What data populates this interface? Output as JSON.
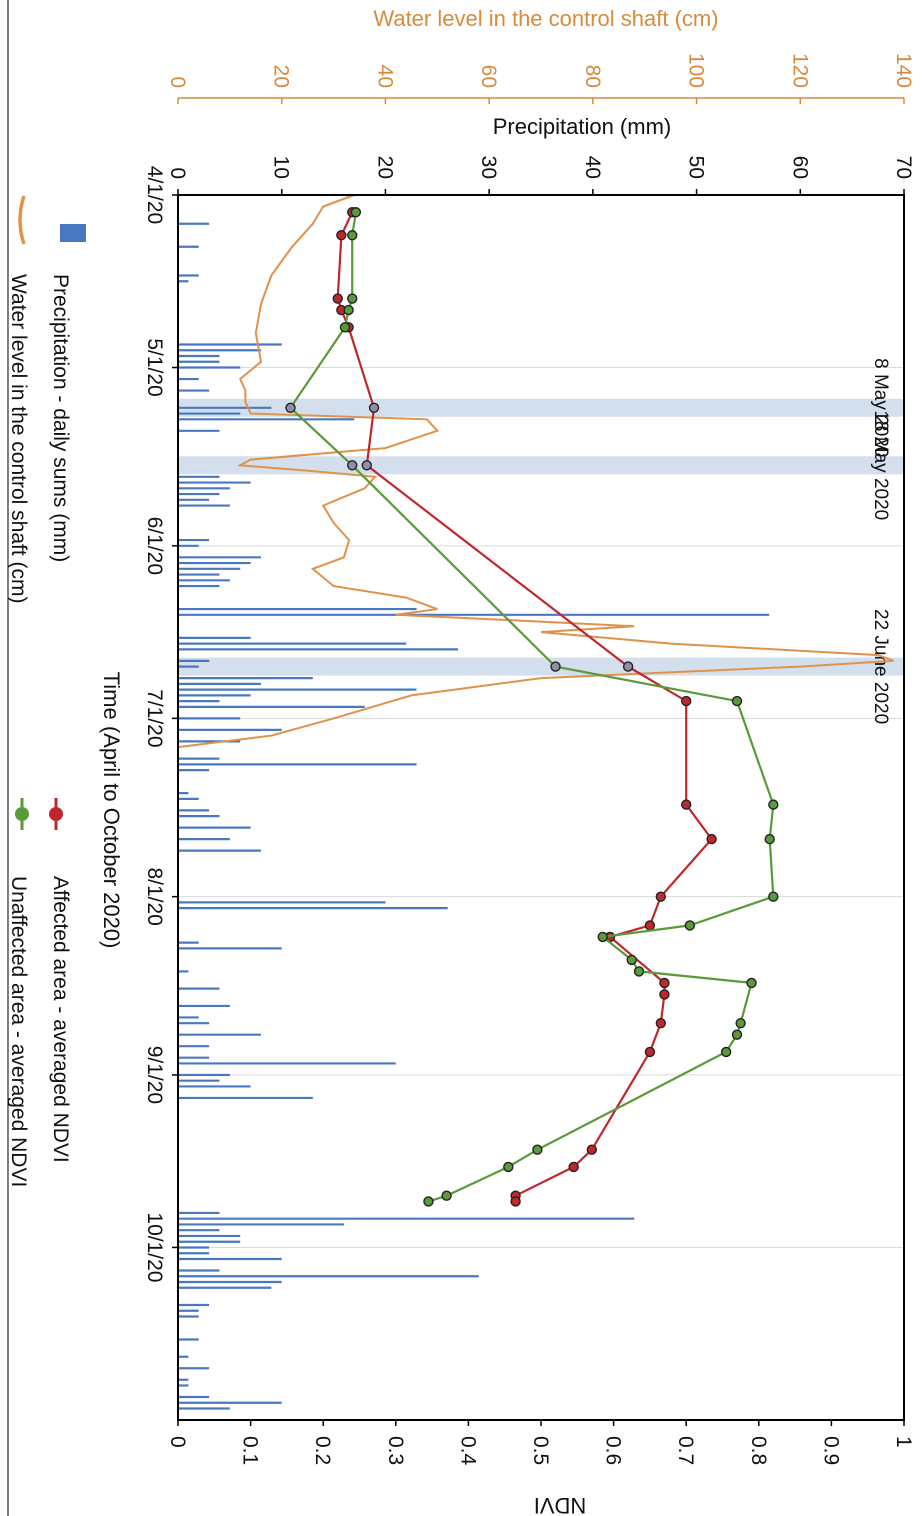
{
  "chart_data": {
    "type": "line",
    "title": "",
    "xlabel": "Time (April to October 2020)",
    "x_ticks": [
      "4/1/20",
      "5/1/20",
      "6/1/20",
      "7/1/20",
      "8/1/20",
      "9/1/20",
      "10/1/20"
    ],
    "x_range": [
      "2020-04-01",
      "2020-10-31"
    ],
    "ndvi_axis": {
      "label": "NDVI",
      "range": [
        0,
        1
      ],
      "ticks": [
        "0",
        "0.1",
        "0.2",
        "0.3",
        "0.4",
        "0.5",
        "0.6",
        "0.7",
        "0.8",
        "0.9",
        "1"
      ]
    },
    "precip_axis": {
      "label": "Precipitation (mm)",
      "range": [
        0,
        70
      ],
      "ticks": [
        "0",
        "10",
        "20",
        "30",
        "40",
        "50",
        "60",
        "70"
      ]
    },
    "water_axis": {
      "label": "Water level in the control shaft (cm)",
      "range": [
        0,
        140
      ],
      "ticks": [
        "0",
        "20",
        "40",
        "60",
        "80",
        "100",
        "120",
        "140"
      ],
      "color": "#d98a3d"
    },
    "highlights": [
      {
        "date": "2020-05-08",
        "label": "8 May 2020"
      },
      {
        "date": "2020-05-18",
        "label": "18 May 2020"
      },
      {
        "date": "2020-06-22",
        "label": "22 June 2020"
      }
    ],
    "grid": true,
    "legend_position": "bottom",
    "legend": [
      {
        "label": "Precipitation - daily sums (mm)",
        "kind": "bar",
        "color": "#4a78c0"
      },
      {
        "label": "Water level in the control shaft (cm)",
        "kind": "line",
        "color": "#e0924b"
      },
      {
        "label": "Affected area - averaged NDVI",
        "kind": "marker-line",
        "color": "#c0272d"
      },
      {
        "label": "Unaffected area - averaged NDVI",
        "kind": "marker-line",
        "color": "#5a9a3a"
      }
    ],
    "series": [
      {
        "name": "Affected area - averaged NDVI",
        "color": "#c0272d",
        "points": [
          [
            "2020-04-04",
            0.24
          ],
          [
            "2020-04-08",
            0.225
          ],
          [
            "2020-04-19",
            0.22
          ],
          [
            "2020-04-21",
            0.225
          ],
          [
            "2020-04-24",
            0.235
          ],
          [
            "2020-05-08",
            0.27
          ],
          [
            "2020-05-18",
            0.26
          ],
          [
            "2020-06-22",
            0.62
          ],
          [
            "2020-06-28",
            0.7
          ],
          [
            "2020-07-16",
            0.7
          ],
          [
            "2020-07-22",
            0.735
          ],
          [
            "2020-08-01",
            0.665
          ],
          [
            "2020-08-06",
            0.65
          ],
          [
            "2020-08-08",
            0.595
          ],
          [
            "2020-08-16",
            0.67
          ],
          [
            "2020-08-18",
            0.67
          ],
          [
            "2020-08-23",
            0.665
          ],
          [
            "2020-08-28",
            0.65
          ],
          [
            "2020-09-14",
            0.57
          ],
          [
            "2020-09-17",
            0.545
          ],
          [
            "2020-09-22",
            0.465
          ],
          [
            "2020-09-23",
            0.465
          ]
        ]
      },
      {
        "name": "Unaffected area - averaged NDVI",
        "color": "#5a9a3a",
        "points": [
          [
            "2020-04-04",
            0.245
          ],
          [
            "2020-04-08",
            0.24
          ],
          [
            "2020-04-19",
            0.24
          ],
          [
            "2020-04-21",
            0.235
          ],
          [
            "2020-04-24",
            0.23
          ],
          [
            "2020-05-08",
            0.155
          ],
          [
            "2020-05-18",
            0.24
          ],
          [
            "2020-06-22",
            0.52
          ],
          [
            "2020-06-28",
            0.77
          ],
          [
            "2020-07-16",
            0.82
          ],
          [
            "2020-07-22",
            0.815
          ],
          [
            "2020-08-01",
            0.82
          ],
          [
            "2020-08-06",
            0.705
          ],
          [
            "2020-08-08",
            0.585
          ],
          [
            "2020-08-12",
            0.625
          ],
          [
            "2020-08-14",
            0.635
          ],
          [
            "2020-08-16",
            0.79
          ],
          [
            "2020-08-23",
            0.775
          ],
          [
            "2020-08-25",
            0.77
          ],
          [
            "2020-08-28",
            0.755
          ],
          [
            "2020-09-14",
            0.495
          ],
          [
            "2020-09-17",
            0.455
          ],
          [
            "2020-09-22",
            0.37
          ],
          [
            "2020-09-23",
            0.345
          ]
        ]
      },
      {
        "name": "Water level in the control shaft (cm)",
        "color": "#e0924b",
        "points": [
          [
            "2020-04-01",
            34
          ],
          [
            "2020-04-03",
            28
          ],
          [
            "2020-04-06",
            26
          ],
          [
            "2020-04-10",
            22
          ],
          [
            "2020-04-15",
            18
          ],
          [
            "2020-04-20",
            16
          ],
          [
            "2020-04-25",
            15
          ],
          [
            "2020-04-30",
            16
          ],
          [
            "2020-05-03",
            12
          ],
          [
            "2020-05-05",
            13
          ],
          [
            "2020-05-07",
            13
          ],
          [
            "2020-05-09",
            14
          ],
          [
            "2020-05-10",
            48
          ],
          [
            "2020-05-12",
            50
          ],
          [
            "2020-05-15",
            40
          ],
          [
            "2020-05-17",
            14
          ],
          [
            "2020-05-18",
            12
          ],
          [
            "2020-05-19",
            26
          ],
          [
            "2020-05-20",
            38
          ],
          [
            "2020-05-22",
            36
          ],
          [
            "2020-05-25",
            28
          ],
          [
            "2020-05-28",
            30
          ],
          [
            "2020-05-31",
            33
          ],
          [
            "2020-06-03",
            32
          ],
          [
            "2020-06-05",
            26
          ],
          [
            "2020-06-08",
            30
          ],
          [
            "2020-06-10",
            44
          ],
          [
            "2020-06-12",
            50
          ],
          [
            "2020-06-13",
            42
          ],
          [
            "2020-06-14",
            66
          ],
          [
            "2020-06-15",
            88
          ],
          [
            "2020-06-16",
            70
          ],
          [
            "2020-06-18",
            95
          ],
          [
            "2020-06-20",
            135
          ],
          [
            "2020-06-21",
            138
          ],
          [
            "2020-06-22",
            120
          ],
          [
            "2020-06-24",
            70
          ],
          [
            "2020-06-27",
            45
          ],
          [
            "2020-07-01",
            30
          ],
          [
            "2020-07-04",
            18
          ],
          [
            "2020-07-06",
            0
          ],
          [
            "2020-10-31",
            0
          ]
        ]
      },
      {
        "name": "Precipitation - daily sums (mm)",
        "color": "#4a78c0",
        "points": [
          [
            "2020-04-06",
            3
          ],
          [
            "2020-04-10",
            2
          ],
          [
            "2020-04-15",
            2
          ],
          [
            "2020-04-16",
            1
          ],
          [
            "2020-04-27",
            10
          ],
          [
            "2020-04-28",
            8
          ],
          [
            "2020-04-29",
            4
          ],
          [
            "2020-04-30",
            4
          ],
          [
            "2020-05-01",
            6
          ],
          [
            "2020-05-03",
            2
          ],
          [
            "2020-05-05",
            3
          ],
          [
            "2020-05-08",
            9
          ],
          [
            "2020-05-09",
            6
          ],
          [
            "2020-05-10",
            17
          ],
          [
            "2020-05-12",
            4
          ],
          [
            "2020-05-20",
            4
          ],
          [
            "2020-05-21",
            7
          ],
          [
            "2020-05-22",
            5
          ],
          [
            "2020-05-23",
            4
          ],
          [
            "2020-05-24",
            3
          ],
          [
            "2020-05-25",
            5
          ],
          [
            "2020-05-31",
            3
          ],
          [
            "2020-06-01",
            2
          ],
          [
            "2020-06-03",
            8
          ],
          [
            "2020-06-04",
            7
          ],
          [
            "2020-06-05",
            6
          ],
          [
            "2020-06-06",
            4
          ],
          [
            "2020-06-07",
            5
          ],
          [
            "2020-06-08",
            4
          ],
          [
            "2020-06-12",
            23
          ],
          [
            "2020-06-13",
            57
          ],
          [
            "2020-06-17",
            7
          ],
          [
            "2020-06-18",
            22
          ],
          [
            "2020-06-19",
            27
          ],
          [
            "2020-06-21",
            3
          ],
          [
            "2020-06-22",
            2
          ],
          [
            "2020-06-24",
            13
          ],
          [
            "2020-06-25",
            8
          ],
          [
            "2020-06-26",
            23
          ],
          [
            "2020-06-27",
            7
          ],
          [
            "2020-06-28",
            4
          ],
          [
            "2020-06-29",
            18
          ],
          [
            "2020-07-01",
            6
          ],
          [
            "2020-07-03",
            10
          ],
          [
            "2020-07-05",
            6
          ],
          [
            "2020-07-08",
            4
          ],
          [
            "2020-07-09",
            23
          ],
          [
            "2020-07-10",
            3
          ],
          [
            "2020-07-14",
            1
          ],
          [
            "2020-07-15",
            2
          ],
          [
            "2020-07-17",
            3
          ],
          [
            "2020-07-18",
            4
          ],
          [
            "2020-07-20",
            7
          ],
          [
            "2020-07-22",
            5
          ],
          [
            "2020-07-24",
            8
          ],
          [
            "2020-08-02",
            20
          ],
          [
            "2020-08-03",
            26
          ],
          [
            "2020-08-09",
            2
          ],
          [
            "2020-08-10",
            10
          ],
          [
            "2020-08-14",
            1
          ],
          [
            "2020-08-17",
            4
          ],
          [
            "2020-08-20",
            5
          ],
          [
            "2020-08-22",
            2
          ],
          [
            "2020-08-23",
            3
          ],
          [
            "2020-08-25",
            8
          ],
          [
            "2020-08-27",
            3
          ],
          [
            "2020-08-29",
            3
          ],
          [
            "2020-08-30",
            21
          ],
          [
            "2020-09-01",
            5
          ],
          [
            "2020-09-02",
            4
          ],
          [
            "2020-09-03",
            7
          ],
          [
            "2020-09-05",
            13
          ],
          [
            "2020-09-25",
            4
          ],
          [
            "2020-09-26",
            44
          ],
          [
            "2020-09-27",
            16
          ],
          [
            "2020-09-28",
            4
          ],
          [
            "2020-09-29",
            6
          ],
          [
            "2020-09-30",
            6
          ],
          [
            "2020-10-01",
            3
          ],
          [
            "2020-10-02",
            3
          ],
          [
            "2020-10-03",
            10
          ],
          [
            "2020-10-05",
            4
          ],
          [
            "2020-10-06",
            29
          ],
          [
            "2020-10-07",
            10
          ],
          [
            "2020-10-08",
            9
          ],
          [
            "2020-10-11",
            3
          ],
          [
            "2020-10-12",
            2
          ],
          [
            "2020-10-13",
            2
          ],
          [
            "2020-10-17",
            2
          ],
          [
            "2020-10-20",
            1
          ],
          [
            "2020-10-22",
            3
          ],
          [
            "2020-10-24",
            1
          ],
          [
            "2020-10-25",
            1
          ],
          [
            "2020-10-27",
            3
          ],
          [
            "2020-10-28",
            10
          ],
          [
            "2020-10-29",
            5
          ]
        ]
      }
    ]
  }
}
